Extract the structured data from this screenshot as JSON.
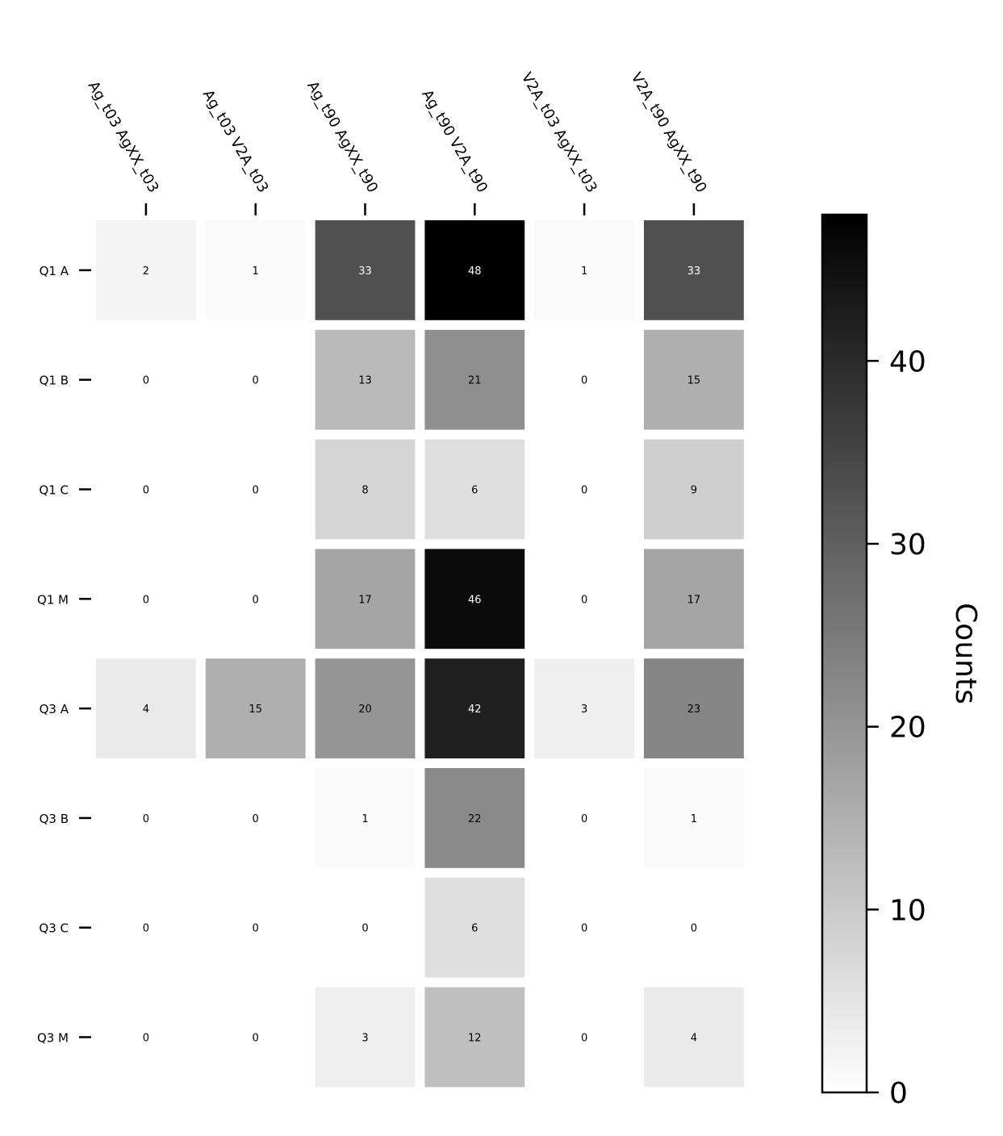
{
  "chart_data": {
    "type": "heatmap",
    "title": "",
    "x_categories": [
      "Ag_t03 AgXX_t03",
      "Ag_t03 V2A_t03",
      "Ag_t90 AgXX_t90",
      "Ag_t90 V2A_t90",
      "V2A_t03 AgXX_t03",
      "V2A_t90 AgXX_t90"
    ],
    "y_categories": [
      "Q1 A",
      "Q1 B",
      "Q1 C",
      "Q1 M",
      "Q3 A",
      "Q3 B",
      "Q3 C",
      "Q3 M"
    ],
    "values": [
      [
        2,
        1,
        33,
        48,
        1,
        33
      ],
      [
        0,
        0,
        13,
        21,
        0,
        15
      ],
      [
        0,
        0,
        8,
        6,
        0,
        9
      ],
      [
        0,
        0,
        17,
        46,
        0,
        17
      ],
      [
        4,
        15,
        20,
        42,
        3,
        23
      ],
      [
        0,
        0,
        1,
        22,
        0,
        1
      ],
      [
        0,
        0,
        0,
        6,
        0,
        0
      ],
      [
        0,
        0,
        3,
        12,
        0,
        4
      ]
    ],
    "colormap": "Greys",
    "vmin": 0,
    "vmax": 48,
    "colorbar": {
      "label": "Counts",
      "ticks": [
        "0",
        "10",
        "20",
        "30",
        "40"
      ]
    }
  }
}
